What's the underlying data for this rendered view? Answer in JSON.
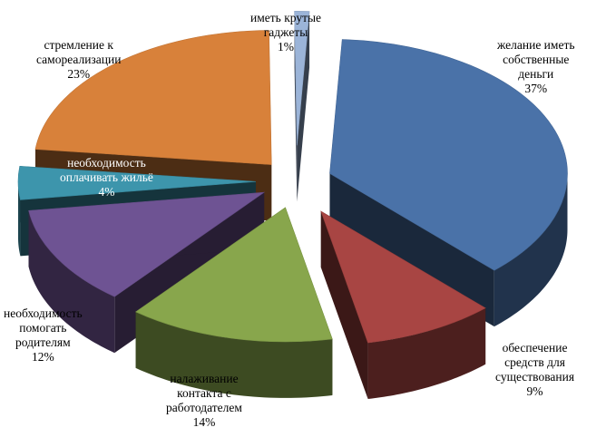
{
  "chart_data": {
    "type": "pie",
    "style": "3d-exploded",
    "slices": [
      {
        "label_lines": [
          "желание иметь",
          "собственные",
          "деньги"
        ],
        "pct_label": "37%",
        "value": 37,
        "color": "#4a72a8"
      },
      {
        "label_lines": [
          "обеспечение",
          "средств для",
          "существования"
        ],
        "pct_label": "9%",
        "value": 9,
        "color": "#a84543"
      },
      {
        "label_lines": [
          "налаживание",
          "контакта  с",
          "работодателем"
        ],
        "pct_label": "14%",
        "value": 14,
        "color": "#88a64c"
      },
      {
        "label_lines": [
          "необходимость",
          "помогать",
          "родителям"
        ],
        "pct_label": "12%",
        "value": 12,
        "color": "#6e5393"
      },
      {
        "label_lines": [
          "необходимость",
          "оплачивать жильё"
        ],
        "pct_label": "4%",
        "value": 4,
        "color": "#3d95ac"
      },
      {
        "label_lines": [
          "стремление к",
          "самореализации"
        ],
        "pct_label": "23%",
        "value": 23,
        "color": "#d8813a"
      },
      {
        "label_lines": [
          "иметь крутые",
          "гаджеты"
        ],
        "pct_label": "1%",
        "value": 1,
        "color": "#9bb4d8"
      }
    ]
  }
}
